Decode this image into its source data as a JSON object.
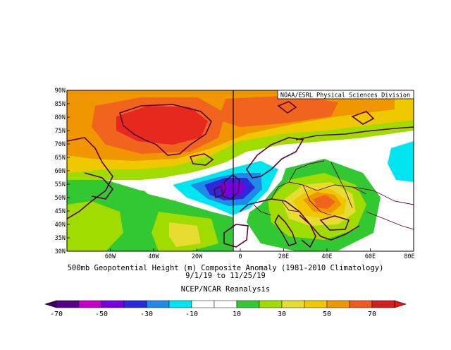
{
  "map": {
    "attribution": "NOAA/ESRL Physical Sciences Division",
    "lat_labels": [
      "30N",
      "35N",
      "40N",
      "45N",
      "50N",
      "55N",
      "60N",
      "65N",
      "70N",
      "75N",
      "80N",
      "85N",
      "90N"
    ],
    "lon_labels": [
      "60W",
      "40W",
      "20W",
      "0",
      "20E",
      "40E",
      "60E",
      "80E"
    ],
    "lon_range": [
      -80,
      80
    ],
    "lat_range": [
      30,
      90
    ]
  },
  "caption": {
    "line1": "500mb Geopotential Height (m) Composite Anomaly (1981-2010 Climatology)",
    "line2": "9/1/19 to 11/25/19",
    "line3": "NCEP/NCAR Reanalysis"
  },
  "legend": {
    "labels": [
      "-70",
      "-50",
      "-30",
      "-10",
      "10",
      "30",
      "50",
      "70"
    ],
    "colors": [
      "#560087",
      "#c400c8",
      "#7800e0",
      "#2a2ad8",
      "#1e8ce6",
      "#00e6f0",
      "#ffffff",
      "#ffffff",
      "#32c832",
      "#a0dc00",
      "#e6dc32",
      "#f0c800",
      "#f09600",
      "#f05a1e",
      "#d21e1e"
    ]
  },
  "colors": {
    "red": "#e6281e",
    "orange_red": "#f0641e",
    "orange": "#f09600",
    "yellow": "#f0c800",
    "light_yellow": "#e6dc32",
    "yellow_green": "#a0dc00",
    "green": "#32c832",
    "white": "#ffffff",
    "cyan": "#00e6f0",
    "light_blue": "#1e8ce6",
    "blue": "#2a2ad8",
    "violet": "#7800e0",
    "land": "#5a0032"
  }
}
